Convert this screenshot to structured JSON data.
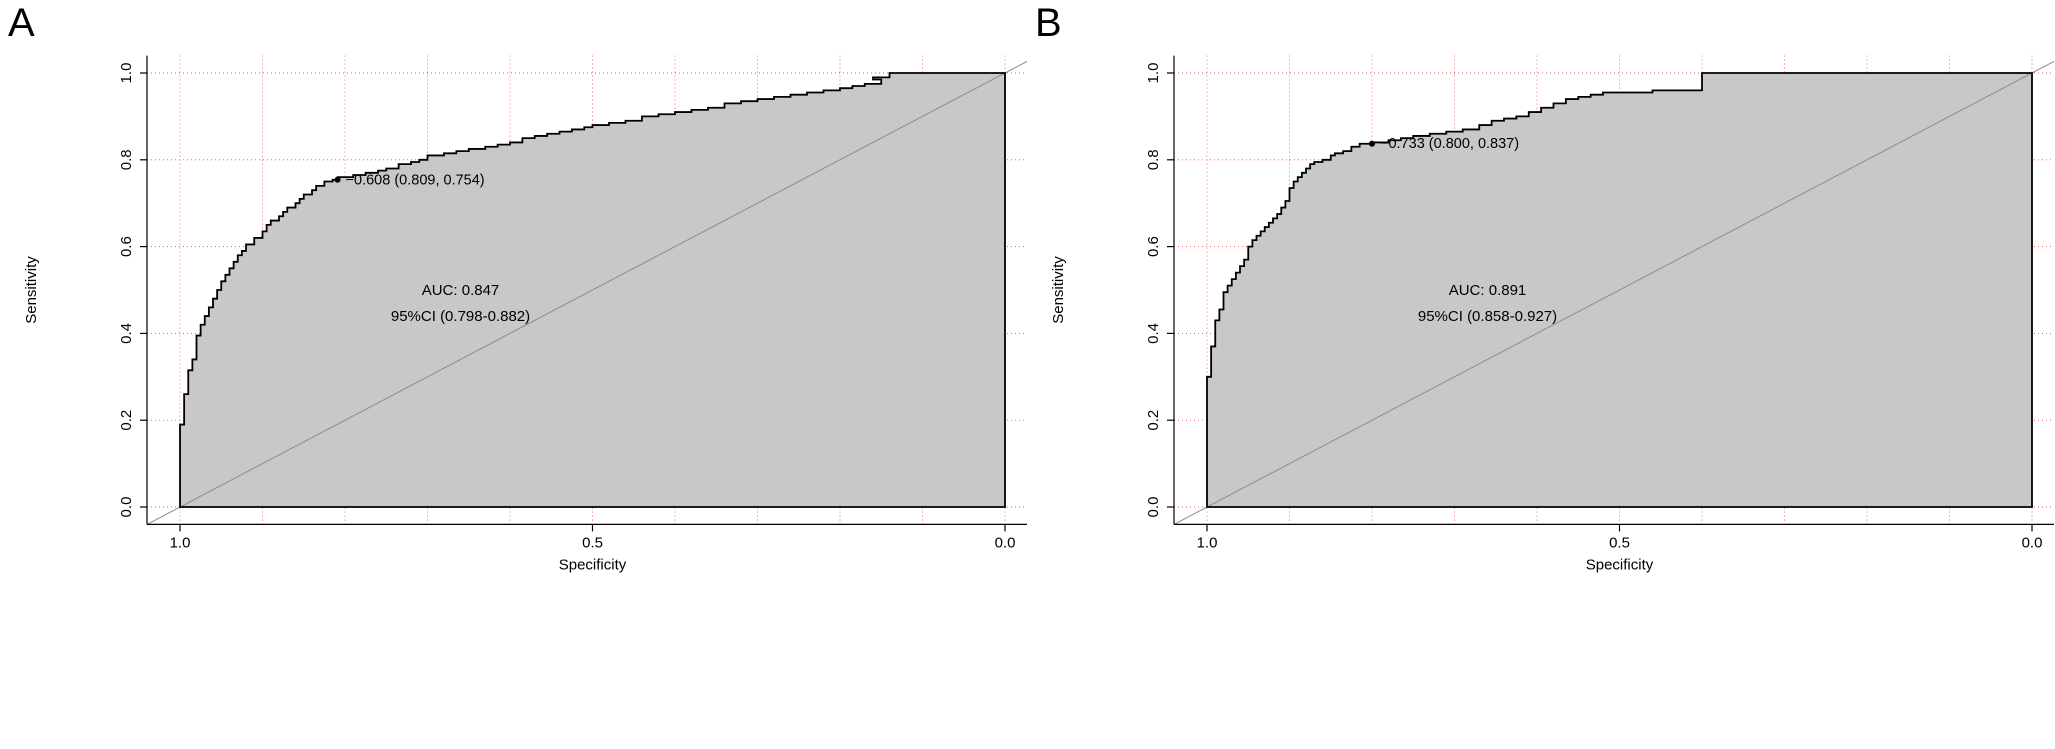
{
  "style": {
    "area_fill": "#c8c8c8",
    "grid_color": "#e05a5a",
    "diagonal_color": "#8c8c8c",
    "curve_color": "#000000",
    "axis_color": "#000000",
    "text_color": "#000000"
  },
  "chart_data": [
    {
      "type": "line",
      "panel_label": "A",
      "title": "",
      "xlabel": "Specificity",
      "ylabel": "Sensitivity",
      "xlim": [
        1.0,
        0.0
      ],
      "ylim": [
        0.0,
        1.0
      ],
      "x_ticks": [
        1.0,
        0.5,
        0.0
      ],
      "y_ticks": [
        0.0,
        0.2,
        0.4,
        0.6,
        0.8,
        1.0
      ],
      "grid": {
        "x_step": 0.1,
        "y_step": 0.2,
        "style": "dotted"
      },
      "diagonal_reference": true,
      "auc": 0.847,
      "auc_label": "AUC: 0.847",
      "ci_label": "95%CI (0.798-0.882)",
      "auc_pos": [
        0.66,
        0.488
      ],
      "ci_pos": [
        0.66,
        0.428
      ],
      "best_threshold": {
        "value": -0.608,
        "specificity": 0.809,
        "sensitivity": 0.754,
        "label": "−0.608 (0.809, 0.754)"
      },
      "series": [
        {
          "name": "ROC curve",
          "points": [
            [
              1.0,
              0.0
            ],
            [
              1.0,
              0.155
            ],
            [
              0.995,
              0.19
            ],
            [
              0.995,
              0.225
            ],
            [
              0.99,
              0.26
            ],
            [
              0.99,
              0.29
            ],
            [
              0.985,
              0.315
            ],
            [
              0.98,
              0.34
            ],
            [
              0.98,
              0.37
            ],
            [
              0.975,
              0.395
            ],
            [
              0.97,
              0.42
            ],
            [
              0.965,
              0.44
            ],
            [
              0.96,
              0.46
            ],
            [
              0.955,
              0.48
            ],
            [
              0.95,
              0.5
            ],
            [
              0.945,
              0.52
            ],
            [
              0.94,
              0.535
            ],
            [
              0.935,
              0.55
            ],
            [
              0.93,
              0.565
            ],
            [
              0.925,
              0.58
            ],
            [
              0.92,
              0.59
            ],
            [
              0.91,
              0.605
            ],
            [
              0.9,
              0.62
            ],
            [
              0.895,
              0.635
            ],
            [
              0.89,
              0.65
            ],
            [
              0.88,
              0.66
            ],
            [
              0.875,
              0.67
            ],
            [
              0.87,
              0.68
            ],
            [
              0.86,
              0.69
            ],
            [
              0.855,
              0.7
            ],
            [
              0.85,
              0.71
            ],
            [
              0.84,
              0.72
            ],
            [
              0.835,
              0.73
            ],
            [
              0.825,
              0.74
            ],
            [
              0.815,
              0.75
            ],
            [
              0.809,
              0.754
            ],
            [
              0.79,
              0.76
            ],
            [
              0.775,
              0.765
            ],
            [
              0.76,
              0.77
            ],
            [
              0.75,
              0.775
            ],
            [
              0.735,
              0.78
            ],
            [
              0.72,
              0.79
            ],
            [
              0.71,
              0.795
            ],
            [
              0.7,
              0.8
            ],
            [
              0.68,
              0.81
            ],
            [
              0.665,
              0.815
            ],
            [
              0.65,
              0.82
            ],
            [
              0.63,
              0.825
            ],
            [
              0.615,
              0.83
            ],
            [
              0.6,
              0.835
            ],
            [
              0.585,
              0.84
            ],
            [
              0.57,
              0.85
            ],
            [
              0.555,
              0.855
            ],
            [
              0.54,
              0.86
            ],
            [
              0.525,
              0.865
            ],
            [
              0.51,
              0.87
            ],
            [
              0.5,
              0.875
            ],
            [
              0.48,
              0.88
            ],
            [
              0.46,
              0.885
            ],
            [
              0.44,
              0.89
            ],
            [
              0.42,
              0.9
            ],
            [
              0.4,
              0.905
            ],
            [
              0.38,
              0.91
            ],
            [
              0.36,
              0.915
            ],
            [
              0.34,
              0.92
            ],
            [
              0.32,
              0.93
            ],
            [
              0.3,
              0.935
            ],
            [
              0.28,
              0.94
            ],
            [
              0.26,
              0.945
            ],
            [
              0.24,
              0.95
            ],
            [
              0.22,
              0.955
            ],
            [
              0.2,
              0.96
            ],
            [
              0.185,
              0.965
            ],
            [
              0.17,
              0.97
            ],
            [
              0.15,
              0.975
            ],
            [
              0.16,
              0.985
            ],
            [
              0.14,
              0.99
            ],
            [
              0.12,
              1.0
            ],
            [
              0.0,
              1.0
            ]
          ]
        }
      ]
    },
    {
      "type": "line",
      "panel_label": "B",
      "title": "",
      "xlabel": "Specificity",
      "ylabel": "Sensitivity",
      "xlim": [
        1.0,
        0.0
      ],
      "ylim": [
        0.0,
        1.0
      ],
      "x_ticks": [
        1.0,
        0.5,
        0.0
      ],
      "y_ticks": [
        0.0,
        0.2,
        0.4,
        0.6,
        0.8,
        1.0
      ],
      "grid": {
        "x_step": 0.1,
        "y_step": 0.2,
        "style": "dotted"
      },
      "diagonal_reference": true,
      "auc": 0.891,
      "auc_label": "AUC: 0.891",
      "ci_label": "95%CI (0.858-0.927)",
      "auc_pos": [
        0.66,
        0.488
      ],
      "ci_pos": [
        0.66,
        0.428
      ],
      "best_threshold": {
        "value": -0.733,
        "specificity": 0.8,
        "sensitivity": 0.837,
        "label": "−0.733 (0.800, 0.837)"
      },
      "series": [
        {
          "name": "ROC curve",
          "points": [
            [
              1.0,
              0.0
            ],
            [
              1.0,
              0.26
            ],
            [
              0.995,
              0.3
            ],
            [
              0.995,
              0.335
            ],
            [
              0.99,
              0.37
            ],
            [
              0.99,
              0.4
            ],
            [
              0.985,
              0.43
            ],
            [
              0.98,
              0.455
            ],
            [
              0.98,
              0.475
            ],
            [
              0.975,
              0.495
            ],
            [
              0.97,
              0.51
            ],
            [
              0.965,
              0.525
            ],
            [
              0.96,
              0.54
            ],
            [
              0.955,
              0.555
            ],
            [
              0.95,
              0.57
            ],
            [
              0.95,
              0.585
            ],
            [
              0.945,
              0.6
            ],
            [
              0.94,
              0.615
            ],
            [
              0.935,
              0.625
            ],
            [
              0.93,
              0.635
            ],
            [
              0.925,
              0.645
            ],
            [
              0.92,
              0.655
            ],
            [
              0.915,
              0.665
            ],
            [
              0.91,
              0.675
            ],
            [
              0.905,
              0.69
            ],
            [
              0.9,
              0.705
            ],
            [
              0.9,
              0.72
            ],
            [
              0.895,
              0.735
            ],
            [
              0.89,
              0.75
            ],
            [
              0.885,
              0.76
            ],
            [
              0.88,
              0.77
            ],
            [
              0.875,
              0.78
            ],
            [
              0.87,
              0.79
            ],
            [
              0.86,
              0.795
            ],
            [
              0.85,
              0.8
            ],
            [
              0.845,
              0.81
            ],
            [
              0.835,
              0.815
            ],
            [
              0.825,
              0.82
            ],
            [
              0.815,
              0.83
            ],
            [
              0.8,
              0.837
            ],
            [
              0.78,
              0.84
            ],
            [
              0.765,
              0.845
            ],
            [
              0.75,
              0.85
            ],
            [
              0.73,
              0.855
            ],
            [
              0.71,
              0.86
            ],
            [
              0.69,
              0.865
            ],
            [
              0.67,
              0.87
            ],
            [
              0.655,
              0.88
            ],
            [
              0.64,
              0.89
            ],
            [
              0.625,
              0.895
            ],
            [
              0.61,
              0.9
            ],
            [
              0.595,
              0.91
            ],
            [
              0.58,
              0.92
            ],
            [
              0.565,
              0.93
            ],
            [
              0.55,
              0.94
            ],
            [
              0.535,
              0.945
            ],
            [
              0.52,
              0.95
            ],
            [
              0.5,
              0.955
            ],
            [
              0.46,
              0.955
            ],
            [
              0.43,
              0.96
            ],
            [
              0.4,
              0.96
            ],
            [
              0.4,
              1.0
            ],
            [
              0.0,
              1.0
            ]
          ]
        }
      ]
    }
  ]
}
